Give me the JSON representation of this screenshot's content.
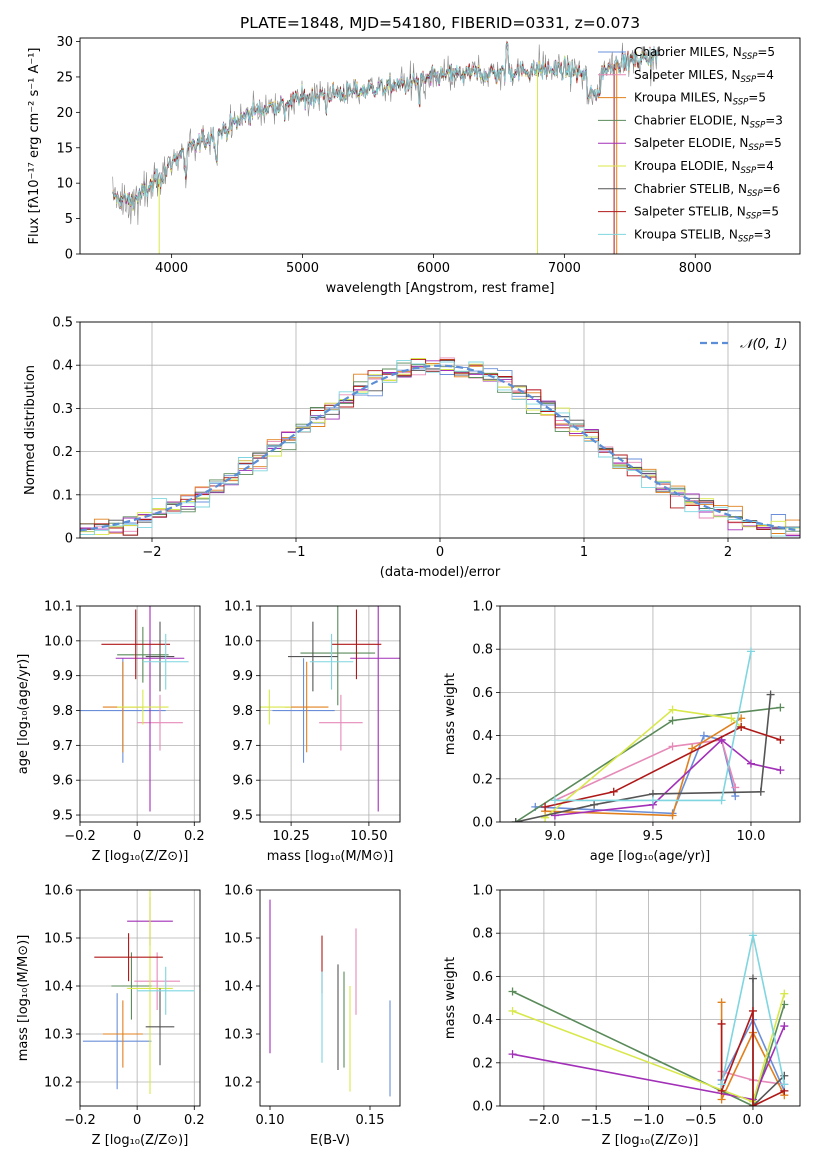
{
  "figure_title": "PLATE=1848, MJD=54180, FIBERID=0331, z=0.073",
  "colors": {
    "chabrier_miles": "#6a8fd8",
    "salpeter_miles": "#e68ab8",
    "kroupa_miles": "#e0801e",
    "chabrier_elodie": "#5a8a5a",
    "salpeter_elodie": "#a22fb8",
    "kroupa_elodie": "#d8e84a",
    "chabrier_stelib": "#555555",
    "salpeter_stelib": "#b01818",
    "kroupa_stelib": "#7fd6e0",
    "normal": "#5b8ed6",
    "grid": "#b0b0b0"
  },
  "chart_data": [
    {
      "type": "line",
      "id": "spectrum",
      "xlabel": "wavelength [Angstrom, rest frame]",
      "ylabel": "Flux [fλ10⁻¹⁷ erg cm⁻² s⁻¹ A⁻¹]",
      "xlim": [
        3300,
        8800
      ],
      "ylim": [
        0,
        30.5
      ],
      "xticks": [
        4000,
        5000,
        6000,
        7000,
        8000
      ],
      "yticks": [
        0,
        5,
        10,
        15,
        20,
        25,
        30
      ],
      "grid": false,
      "legend_position": "right",
      "legend": [
        {
          "label": "Chabrier MILES, N_SSP=5",
          "color_key": "chabrier_miles"
        },
        {
          "label": "Salpeter MILES, N_SSP=4",
          "color_key": "salpeter_miles"
        },
        {
          "label": "Kroupa MILES, N_SSP=5",
          "color_key": "kroupa_miles"
        },
        {
          "label": "Chabrier ELODIE, N_SSP=3",
          "color_key": "chabrier_elodie"
        },
        {
          "label": "Salpeter ELODIE, N_SSP=5",
          "color_key": "salpeter_elodie"
        },
        {
          "label": "Kroupa ELODIE, N_SSP=4",
          "color_key": "kroupa_elodie"
        },
        {
          "label": "Chabrier STELIB, N_SSP=6",
          "color_key": "chabrier_stelib"
        },
        {
          "label": "Salpeter STELIB, N_SSP=5",
          "color_key": "salpeter_stelib"
        },
        {
          "label": "Kroupa STELIB, N_SSP=3",
          "color_key": "kroupa_stelib"
        }
      ],
      "continuum": [
        [
          3550,
          8
        ],
        [
          3700,
          7.5
        ],
        [
          3900,
          10.5
        ],
        [
          4050,
          14
        ],
        [
          4200,
          15.5
        ],
        [
          4400,
          17.5
        ],
        [
          4600,
          20
        ],
        [
          4800,
          21
        ],
        [
          5000,
          22
        ],
        [
          5200,
          22.5
        ],
        [
          5400,
          23
        ],
        [
          5600,
          23.5
        ],
        [
          5800,
          24
        ],
        [
          6000,
          25
        ],
        [
          6200,
          25.5
        ],
        [
          6400,
          25.5
        ],
        [
          6600,
          25.7
        ],
        [
          6800,
          26
        ],
        [
          7000,
          26
        ],
        [
          7200,
          25
        ],
        [
          7400,
          27
        ],
        [
          7600,
          27.5
        ],
        [
          7700,
          28.2
        ]
      ]
    },
    {
      "type": "line",
      "id": "residuals",
      "xlabel": "(data-model)/error",
      "ylabel": "Normed distribution",
      "xlim": [
        -2.5,
        2.5
      ],
      "ylim": [
        0,
        0.5
      ],
      "xticks": [
        -2,
        -1,
        0,
        1,
        2
      ],
      "yticks": [
        0.0,
        0.1,
        0.2,
        0.3,
        0.4,
        0.5
      ],
      "grid": true,
      "legend": [
        {
          "label": "𝒩(0, 1)",
          "color_key": "normal",
          "style": "dashed"
        }
      ]
    },
    {
      "type": "scatter",
      "id": "age_vs_Z",
      "xlabel": "Z [log₁₀(Z/Z⊙)]",
      "ylabel": "age  [log₁₀(age/yr)]",
      "xlim": [
        -0.2,
        0.22
      ],
      "ylim": [
        9.48,
        10.1
      ],
      "xticks": [
        -0.2,
        0.0,
        0.2
      ],
      "ytick_labels": [
        "9.5",
        "9.6",
        "9.7",
        "9.8",
        "9.9",
        "10.0",
        "10.1"
      ],
      "yticks": [
        9.5,
        9.6,
        9.7,
        9.8,
        9.9,
        10.0,
        10.1
      ],
      "grid": true,
      "points": [
        {
          "c": "chabrier_miles",
          "x": -0.05,
          "y": 9.8,
          "ex": 0.15,
          "ey": 0.15
        },
        {
          "c": "salpeter_miles",
          "x": 0.08,
          "y": 9.765,
          "ex": 0.08,
          "ey": 0.08
        },
        {
          "c": "kroupa_miles",
          "x": -0.05,
          "y": 9.81,
          "ex": 0.07,
          "ey": 0.13
        },
        {
          "c": "chabrier_elodie",
          "x": 0.02,
          "y": 9.96,
          "ex": 0.09,
          "ey": 0.08
        },
        {
          "c": "salpeter_elodie",
          "x": 0.045,
          "y": 9.95,
          "ex": 0.12,
          "ey": 0.44
        },
        {
          "c": "kroupa_elodie",
          "x": 0.02,
          "y": 9.81,
          "ex": 0.09,
          "ey": 0.05
        },
        {
          "c": "chabrier_stelib",
          "x": 0.08,
          "y": 9.955,
          "ex": 0.05,
          "ey": 0.1
        },
        {
          "c": "salpeter_stelib",
          "x": -0.005,
          "y": 9.99,
          "ex": 0.12,
          "ey": 0.1
        },
        {
          "c": "kroupa_stelib",
          "x": 0.1,
          "y": 9.94,
          "ex": 0.08,
          "ey": 0.08
        }
      ]
    },
    {
      "type": "scatter",
      "id": "age_vs_mass",
      "xlabel": "mass [log₁₀(M/M⊙)]",
      "ylabel": "",
      "xlim": [
        10.15,
        10.6
      ],
      "ylim": [
        9.48,
        10.1
      ],
      "xticks": [
        10.25,
        10.5
      ],
      "xtick_labels": [
        "10.25",
        "10.50"
      ],
      "yticks": [
        9.5,
        9.6,
        9.7,
        9.8,
        9.9,
        10.0,
        10.1
      ],
      "ytick_labels": [
        "9.5",
        "9.6",
        "9.7",
        "9.8",
        "9.9",
        "10.0",
        "10.1"
      ],
      "grid": true,
      "points": [
        {
          "c": "chabrier_miles",
          "x": 10.29,
          "y": 9.8,
          "ex": 0.1,
          "ey": 0.15
        },
        {
          "c": "salpeter_miles",
          "x": 10.41,
          "y": 9.765,
          "ex": 0.07,
          "ey": 0.08
        },
        {
          "c": "kroupa_miles",
          "x": 10.3,
          "y": 9.81,
          "ex": 0.07,
          "ey": 0.13
        },
        {
          "c": "chabrier_elodie",
          "x": 10.4,
          "y": 9.965,
          "ex": 0.12,
          "ey": 0.15
        },
        {
          "c": "salpeter_elodie",
          "x": 10.53,
          "y": 9.95,
          "ex": 0.09,
          "ey": 0.44
        },
        {
          "c": "kroupa_elodie",
          "x": 10.18,
          "y": 9.81,
          "ex": 0.07,
          "ey": 0.05
        },
        {
          "c": "chabrier_stelib",
          "x": 10.32,
          "y": 9.955,
          "ex": 0.08,
          "ey": 0.1
        },
        {
          "c": "salpeter_stelib",
          "x": 10.46,
          "y": 9.99,
          "ex": 0.08,
          "ey": 0.1
        },
        {
          "c": "kroupa_stelib",
          "x": 10.38,
          "y": 9.94,
          "ex": 0.07,
          "ey": 0.08
        }
      ]
    },
    {
      "type": "line",
      "id": "weight_vs_age",
      "xlabel": "age  [log₁₀(age/yr)]",
      "ylabel": "mass weight",
      "xlim": [
        8.72,
        10.25
      ],
      "ylim": [
        0,
        1.0
      ],
      "xticks": [
        9.0,
        9.5,
        10.0
      ],
      "xtick_labels": [
        "9.0",
        "9.5",
        "10.0"
      ],
      "yticks": [
        0.0,
        0.2,
        0.4,
        0.6,
        0.8,
        1.0
      ],
      "ytick_labels": [
        "0.0",
        "0.2",
        "0.4",
        "0.6",
        "0.8",
        "1.0"
      ],
      "grid": true,
      "series": [
        {
          "c": "chabrier_miles",
          "pts": [
            [
              8.9,
              0.07
            ],
            [
              9.6,
              0.04
            ],
            [
              9.76,
              0.4
            ],
            [
              9.85,
              0.38
            ],
            [
              9.92,
              0.12
            ]
          ]
        },
        {
          "c": "salpeter_miles",
          "pts": [
            [
              9.0,
              0.1
            ],
            [
              9.6,
              0.35
            ],
            [
              9.85,
              0.38
            ],
            [
              9.92,
              0.16
            ]
          ]
        },
        {
          "c": "kroupa_miles",
          "pts": [
            [
              8.95,
              0.05
            ],
            [
              9.6,
              0.03
            ],
            [
              9.7,
              0.34
            ],
            [
              9.95,
              0.48
            ]
          ]
        },
        {
          "c": "chabrier_elodie",
          "pts": [
            [
              8.8,
              0.0
            ],
            [
              9.6,
              0.47
            ],
            [
              10.15,
              0.53
            ]
          ]
        },
        {
          "c": "salpeter_elodie",
          "pts": [
            [
              9.0,
              0.03
            ],
            [
              9.5,
              0.08
            ],
            [
              9.85,
              0.38
            ],
            [
              10.0,
              0.27
            ],
            [
              10.15,
              0.24
            ]
          ]
        },
        {
          "c": "kroupa_elodie",
          "pts": [
            [
              8.95,
              0.02
            ],
            [
              9.6,
              0.52
            ],
            [
              9.9,
              0.48
            ],
            [
              9.95,
              0.44
            ]
          ]
        },
        {
          "c": "chabrier_stelib",
          "pts": [
            [
              8.8,
              0.0
            ],
            [
              9.2,
              0.08
            ],
            [
              9.5,
              0.13
            ],
            [
              10.05,
              0.14
            ],
            [
              10.1,
              0.59
            ]
          ]
        },
        {
          "c": "salpeter_stelib",
          "pts": [
            [
              8.95,
              0.07
            ],
            [
              9.3,
              0.14
            ],
            [
              9.95,
              0.44
            ],
            [
              10.15,
              0.38
            ]
          ]
        },
        {
          "c": "kroupa_stelib",
          "pts": [
            [
              9.0,
              0.1
            ],
            [
              9.5,
              0.1
            ],
            [
              9.85,
              0.1
            ],
            [
              10.0,
              0.79
            ]
          ]
        }
      ]
    },
    {
      "type": "scatter",
      "id": "mass_vs_Z",
      "xlabel": "Z [log₁₀(Z/Z⊙)]",
      "ylabel": "mass [log₁₀(M/M⊙)]",
      "xlim": [
        -0.2,
        0.22
      ],
      "ylim": [
        10.15,
        10.6
      ],
      "xticks": [
        -0.2,
        0.0,
        0.2
      ],
      "yticks": [
        10.2,
        10.3,
        10.4,
        10.5,
        10.6
      ],
      "ytick_labels": [
        "10.2",
        "10.3",
        "10.4",
        "10.5",
        "10.6"
      ],
      "grid": true,
      "points": [
        {
          "c": "chabrier_miles",
          "x": -0.07,
          "y": 10.285,
          "ex": 0.12,
          "ey": 0.1
        },
        {
          "c": "salpeter_miles",
          "x": 0.07,
          "y": 10.41,
          "ex": 0.08,
          "ey": 0.06
        },
        {
          "c": "kroupa_miles",
          "x": -0.05,
          "y": 10.3,
          "ex": 0.07,
          "ey": 0.07
        },
        {
          "c": "chabrier_elodie",
          "x": -0.02,
          "y": 10.4,
          "ex": 0.07,
          "ey": 0.07
        },
        {
          "c": "salpeter_elodie",
          "x": 0.045,
          "y": 10.535,
          "ex": 0.08,
          "ey": 0.05
        },
        {
          "c": "kroupa_elodie",
          "x": 0.045,
          "y": 10.395,
          "ex": 0.08,
          "ey": 0.22
        },
        {
          "c": "chabrier_stelib",
          "x": 0.08,
          "y": 10.315,
          "ex": 0.05,
          "ey": 0.08
        },
        {
          "c": "salpeter_stelib",
          "x": -0.03,
          "y": 10.46,
          "ex": 0.12,
          "ey": 0.05
        },
        {
          "c": "kroupa_stelib",
          "x": 0.1,
          "y": 10.39,
          "ex": 0.1,
          "ey": 0.05
        }
      ]
    },
    {
      "type": "scatter",
      "id": "mass_vs_ebv",
      "xlabel": "E(B-V)",
      "ylabel": "",
      "xlim": [
        0.095,
        0.165
      ],
      "ylim": [
        10.15,
        10.6
      ],
      "xticks": [
        0.1,
        0.15
      ],
      "xtick_labels": [
        "0.10",
        "0.15"
      ],
      "yticks": [
        10.2,
        10.3,
        10.4,
        10.5,
        10.6
      ],
      "ytick_labels": [
        "10.2",
        "10.3",
        "10.4",
        "10.5",
        "10.6"
      ],
      "grid": false,
      "points": [
        {
          "c": "salpeter_elodie",
          "x": 0.1,
          "y": 10.42,
          "ex": 0,
          "ey": 0.16
        },
        {
          "c": "salpeter_stelib",
          "x": 0.126,
          "y": 10.445,
          "ex": 0,
          "ey": 0.06
        },
        {
          "c": "kroupa_stelib",
          "x": 0.126,
          "y": 10.335,
          "ex": 0,
          "ey": 0.095
        },
        {
          "c": "chabrier_stelib",
          "x": 0.134,
          "y": 10.335,
          "ex": 0,
          "ey": 0.11
        },
        {
          "c": "chabrier_elodie",
          "x": 0.137,
          "y": 10.33,
          "ex": 0,
          "ey": 0.1
        },
        {
          "c": "kroupa_elodie",
          "x": 0.14,
          "y": 10.29,
          "ex": 0,
          "ey": 0.11
        },
        {
          "c": "salpeter_miles",
          "x": 0.143,
          "y": 10.43,
          "ex": 0,
          "ey": 0.09
        },
        {
          "c": "chabrier_miles",
          "x": 0.16,
          "y": 10.27,
          "ex": 0,
          "ey": 0.1
        }
      ]
    },
    {
      "type": "line",
      "id": "weight_vs_Z",
      "xlabel": "Z [log₁₀(Z/Z⊙)]",
      "ylabel": "mass weight",
      "xlim": [
        -2.42,
        0.45
      ],
      "ylim": [
        0,
        1.0
      ],
      "xticks": [
        -2.0,
        -1.5,
        -1.0,
        -0.5,
        0.0
      ],
      "xtick_labels": [
        "−2.0",
        "−1.5",
        "−1.0",
        "−0.5",
        "0.0"
      ],
      "yticks": [
        0.0,
        0.2,
        0.4,
        0.6,
        0.8,
        1.0
      ],
      "ytick_labels": [
        "0.0",
        "0.2",
        "0.4",
        "0.6",
        "0.8",
        "1.0"
      ],
      "grid": true,
      "series": [
        {
          "c": "chabrier_miles",
          "pts": [
            [
              -0.3,
              0.12
            ],
            [
              0.0,
              0.4
            ],
            [
              0.3,
              0.07
            ]
          ]
        },
        {
          "c": "salpeter_miles",
          "pts": [
            [
              -0.3,
              0.16
            ],
            [
              0.0,
              0.12
            ],
            [
              0.3,
              0.1
            ]
          ]
        },
        {
          "c": "kroupa_miles",
          "pts": [
            [
              -0.3,
              0.48
            ],
            [
              -0.3,
              0.03
            ],
            [
              0.0,
              0.34
            ],
            [
              0.3,
              0.05
            ]
          ]
        },
        {
          "c": "chabrier_elodie",
          "pts": [
            [
              -2.3,
              0.53
            ],
            [
              0.0,
              0.0
            ],
            [
              0.3,
              0.47
            ]
          ]
        },
        {
          "c": "salpeter_elodie",
          "pts": [
            [
              -2.3,
              0.24
            ],
            [
              0.0,
              0.03
            ],
            [
              0.3,
              0.37
            ]
          ]
        },
        {
          "c": "kroupa_elodie",
          "pts": [
            [
              -2.3,
              0.44
            ],
            [
              0.0,
              0.02
            ],
            [
              0.3,
              0.52
            ]
          ]
        },
        {
          "c": "chabrier_stelib",
          "pts": [
            [
              0.0,
              0.59
            ],
            [
              0.0,
              0.0
            ],
            [
              0.3,
              0.14
            ]
          ]
        },
        {
          "c": "salpeter_stelib",
          "pts": [
            [
              -0.3,
              0.38
            ],
            [
              -0.3,
              0.07
            ],
            [
              0.0,
              0.44
            ],
            [
              0.0,
              0.0
            ],
            [
              0.3,
              0.07
            ]
          ]
        },
        {
          "c": "kroupa_stelib",
          "pts": [
            [
              -0.3,
              0.1
            ],
            [
              0.0,
              0.79
            ],
            [
              0.3,
              0.1
            ]
          ]
        }
      ]
    }
  ]
}
